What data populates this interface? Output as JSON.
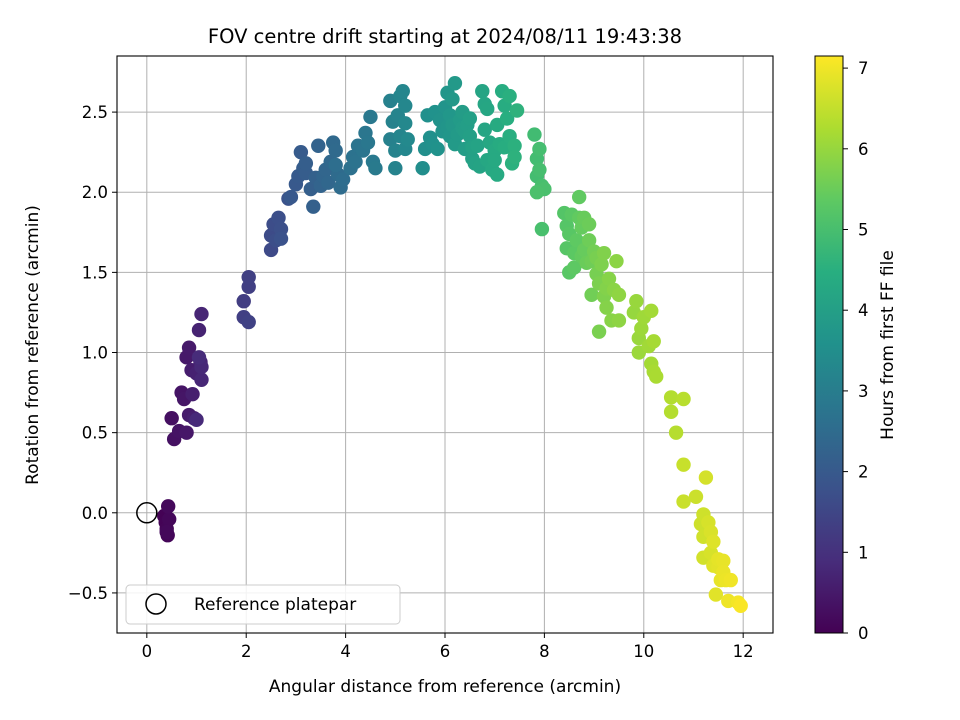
{
  "chart_data": {
    "type": "scatter",
    "title": "FOV centre drift starting at 2024/08/11 19:43:38",
    "xlabel": "Angular distance from reference (arcmin)",
    "ylabel": "Rotation from reference (arcmin)",
    "xlim": [
      -0.6,
      12.6
    ],
    "ylim": [
      -0.75,
      2.85
    ],
    "xticks": [
      0,
      2,
      4,
      6,
      8,
      10,
      12
    ],
    "yticks": [
      -0.5,
      0.0,
      0.5,
      1.0,
      1.5,
      2.0,
      2.5
    ],
    "xtick_labels": [
      "0",
      "2",
      "4",
      "6",
      "8",
      "10",
      "12"
    ],
    "ytick_labels": [
      "−0.5",
      "0.0",
      "0.5",
      "1.0",
      "1.5",
      "2.0",
      "2.5"
    ],
    "grid": true,
    "legend": {
      "placement": "lower-left",
      "entries": [
        {
          "label": "Reference platepar",
          "marker": "open-circle"
        }
      ]
    },
    "reference_point": {
      "x": 0.0,
      "y": 0.0
    },
    "colorbar": {
      "label": "Hours from first FF file",
      "colormap": "viridis",
      "range": [
        0,
        7.15
      ],
      "ticks": [
        0,
        1,
        2,
        3,
        4,
        5,
        6,
        7
      ],
      "tick_labels": [
        "0",
        "1",
        "2",
        "3",
        "4",
        "5",
        "6",
        "7"
      ]
    },
    "points": [
      [
        0.35,
        -0.02,
        0.02
      ],
      [
        0.38,
        -0.06,
        0.05
      ],
      [
        0.4,
        -0.1,
        0.08
      ],
      [
        0.42,
        -0.14,
        0.1
      ],
      [
        0.45,
        -0.04,
        0.12
      ],
      [
        0.4,
        -0.12,
        0.14
      ],
      [
        0.43,
        0.04,
        0.16
      ],
      [
        0.5,
        0.59,
        0.3
      ],
      [
        0.55,
        0.46,
        0.33
      ],
      [
        0.65,
        0.51,
        0.36
      ],
      [
        0.7,
        0.75,
        0.39
      ],
      [
        0.75,
        0.71,
        0.42
      ],
      [
        0.8,
        0.5,
        0.45
      ],
      [
        0.8,
        0.97,
        0.48
      ],
      [
        0.85,
        1.03,
        0.51
      ],
      [
        0.85,
        0.61,
        0.54
      ],
      [
        0.9,
        0.89,
        0.57
      ],
      [
        0.92,
        0.74,
        0.6
      ],
      [
        0.95,
        0.59,
        0.63
      ],
      [
        1.0,
        0.87,
        0.66
      ],
      [
        1.05,
        1.14,
        0.69
      ],
      [
        1.08,
        0.94,
        0.72
      ],
      [
        1.1,
        1.24,
        0.75
      ],
      [
        1.1,
        0.83,
        0.78
      ],
      [
        1.1,
        0.91,
        0.81
      ],
      [
        1.0,
        0.58,
        0.84
      ],
      [
        1.05,
        0.97,
        0.87
      ],
      [
        1.95,
        1.32,
        1.3
      ],
      [
        1.95,
        1.22,
        1.32
      ],
      [
        2.05,
        1.41,
        1.34
      ],
      [
        2.05,
        1.47,
        1.36
      ],
      [
        2.05,
        1.19,
        1.38
      ],
      [
        2.5,
        1.64,
        1.6
      ],
      [
        2.5,
        1.73,
        1.63
      ],
      [
        2.55,
        1.8,
        1.66
      ],
      [
        2.6,
        1.7,
        1.69
      ],
      [
        2.65,
        1.84,
        1.72
      ],
      [
        2.7,
        1.77,
        1.75
      ],
      [
        2.7,
        1.71,
        1.78
      ],
      [
        2.85,
        1.96,
        1.81
      ],
      [
        2.9,
        1.97,
        1.95
      ],
      [
        3.0,
        2.05,
        1.98
      ],
      [
        3.05,
        2.1,
        2.01
      ],
      [
        3.1,
        2.25,
        2.04
      ],
      [
        3.15,
        2.15,
        2.07
      ],
      [
        3.2,
        2.12,
        2.1
      ],
      [
        3.2,
        2.18,
        2.13
      ],
      [
        3.3,
        2.02,
        2.16
      ],
      [
        3.35,
        1.91,
        2.19
      ],
      [
        3.4,
        2.09,
        2.22
      ],
      [
        3.45,
        2.29,
        2.25
      ],
      [
        3.5,
        2.04,
        2.28
      ],
      [
        3.55,
        2.1,
        2.31
      ],
      [
        3.6,
        2.14,
        2.34
      ],
      [
        3.65,
        2.06,
        2.37
      ],
      [
        3.7,
        2.19,
        2.4
      ],
      [
        3.75,
        2.31,
        2.43
      ],
      [
        3.8,
        2.26,
        2.46
      ],
      [
        3.85,
        2.11,
        2.49
      ],
      [
        3.9,
        2.03,
        2.52
      ],
      [
        3.95,
        2.08,
        2.55
      ],
      [
        3.8,
        2.17,
        2.58
      ],
      [
        4.1,
        2.15,
        2.65
      ],
      [
        4.15,
        2.22,
        2.68
      ],
      [
        4.2,
        2.19,
        2.71
      ],
      [
        4.25,
        2.29,
        2.74
      ],
      [
        4.35,
        2.26,
        2.77
      ],
      [
        4.4,
        2.37,
        2.8
      ],
      [
        4.45,
        2.31,
        2.83
      ],
      [
        4.5,
        2.47,
        2.86
      ],
      [
        4.55,
        2.19,
        2.89
      ],
      [
        4.6,
        2.15,
        2.92
      ],
      [
        4.9,
        2.33,
        3.1
      ],
      [
        4.9,
        2.57,
        3.12
      ],
      [
        4.95,
        2.44,
        3.14
      ],
      [
        5.0,
        2.15,
        3.16
      ],
      [
        5.0,
        2.26,
        3.18
      ],
      [
        5.05,
        2.48,
        3.2
      ],
      [
        5.1,
        2.6,
        3.22
      ],
      [
        5.1,
        2.35,
        3.24
      ],
      [
        5.15,
        2.63,
        3.26
      ],
      [
        5.2,
        2.54,
        3.28
      ],
      [
        5.2,
        2.27,
        3.3
      ],
      [
        5.2,
        2.43,
        3.32
      ],
      [
        5.25,
        2.33,
        3.34
      ],
      [
        5.55,
        2.15,
        3.5
      ],
      [
        5.6,
        2.27,
        3.52
      ],
      [
        5.65,
        2.48,
        3.54
      ],
      [
        5.7,
        2.34,
        3.56
      ],
      [
        5.75,
        2.3,
        3.58
      ],
      [
        5.8,
        2.5,
        3.6
      ],
      [
        5.85,
        2.27,
        3.62
      ],
      [
        5.9,
        2.45,
        3.64
      ],
      [
        5.95,
        2.38,
        3.66
      ],
      [
        6.0,
        2.53,
        3.68
      ],
      [
        6.05,
        2.41,
        3.7
      ],
      [
        6.05,
        2.62,
        3.72
      ],
      [
        6.1,
        2.35,
        3.74
      ],
      [
        6.1,
        2.48,
        3.76
      ],
      [
        6.15,
        2.42,
        3.78
      ],
      [
        6.15,
        2.58,
        3.8
      ],
      [
        6.2,
        2.68,
        3.82
      ],
      [
        6.2,
        2.3,
        3.84
      ],
      [
        6.25,
        2.36,
        3.86
      ],
      [
        6.3,
        2.45,
        3.88
      ],
      [
        6.35,
        2.4,
        3.9
      ],
      [
        6.35,
        2.5,
        3.92
      ],
      [
        6.4,
        2.38,
        3.94
      ],
      [
        6.4,
        2.27,
        3.96
      ],
      [
        6.45,
        2.42,
        3.98
      ],
      [
        6.5,
        2.35,
        4.0
      ],
      [
        6.5,
        2.46,
        4.02
      ],
      [
        6.55,
        2.21,
        4.04
      ],
      [
        6.55,
        2.28,
        4.06
      ],
      [
        6.6,
        2.18,
        4.1
      ],
      [
        6.65,
        2.29,
        4.12
      ],
      [
        6.7,
        2.16,
        4.14
      ],
      [
        6.75,
        2.63,
        4.16
      ],
      [
        6.8,
        2.55,
        4.18
      ],
      [
        6.8,
        2.39,
        4.2
      ],
      [
        6.85,
        2.52,
        4.22
      ],
      [
        6.85,
        2.2,
        4.24
      ],
      [
        6.9,
        2.31,
        4.26
      ],
      [
        6.95,
        2.14,
        4.28
      ],
      [
        7.0,
        2.26,
        4.3
      ],
      [
        7.0,
        2.2,
        4.32
      ],
      [
        7.05,
        2.11,
        4.34
      ],
      [
        7.05,
        2.42,
        4.36
      ],
      [
        7.1,
        2.3,
        4.38
      ],
      [
        7.15,
        2.63,
        4.4
      ],
      [
        7.2,
        2.54,
        4.42
      ],
      [
        7.2,
        2.28,
        4.44
      ],
      [
        7.25,
        2.46,
        4.46
      ],
      [
        7.3,
        2.35,
        4.48
      ],
      [
        7.3,
        2.6,
        4.5
      ],
      [
        7.35,
        2.18,
        4.52
      ],
      [
        7.4,
        2.29,
        4.54
      ],
      [
        7.4,
        2.22,
        4.56
      ],
      [
        7.45,
        2.51,
        4.58
      ],
      [
        7.8,
        2.36,
        4.9
      ],
      [
        7.85,
        2.21,
        4.92
      ],
      [
        7.85,
        2.1,
        4.94
      ],
      [
        7.9,
        2.27,
        4.96
      ],
      [
        7.9,
        2.14,
        4.98
      ],
      [
        7.95,
        2.04,
        5.0
      ],
      [
        7.95,
        1.77,
        5.02
      ],
      [
        8.0,
        2.02,
        5.04
      ],
      [
        7.85,
        2.0,
        5.06
      ],
      [
        8.4,
        1.87,
        5.2
      ],
      [
        8.45,
        1.79,
        5.22
      ],
      [
        8.45,
        1.65,
        5.24
      ],
      [
        8.5,
        1.74,
        5.26
      ],
      [
        8.5,
        1.5,
        5.28
      ],
      [
        8.55,
        1.86,
        5.3
      ],
      [
        8.6,
        1.62,
        5.32
      ],
      [
        8.6,
        1.53,
        5.34
      ],
      [
        8.65,
        1.7,
        5.36
      ],
      [
        8.7,
        1.97,
        5.38
      ],
      [
        8.7,
        1.84,
        5.4
      ],
      [
        8.75,
        1.6,
        5.42
      ],
      [
        8.75,
        1.78,
        5.44
      ],
      [
        8.8,
        1.64,
        5.46
      ],
      [
        8.8,
        1.84,
        5.48
      ],
      [
        8.85,
        1.56,
        5.5
      ],
      [
        8.9,
        1.8,
        5.52
      ],
      [
        8.9,
        1.7,
        5.54
      ],
      [
        8.95,
        1.57,
        5.56
      ],
      [
        8.95,
        1.36,
        5.58
      ],
      [
        9.0,
        1.63,
        5.6
      ],
      [
        9.05,
        1.49,
        5.64
      ],
      [
        9.05,
        1.59,
        5.66
      ],
      [
        9.1,
        1.13,
        5.68
      ],
      [
        9.1,
        1.43,
        5.7
      ],
      [
        9.15,
        1.55,
        5.72
      ],
      [
        9.2,
        1.35,
        5.74
      ],
      [
        9.2,
        1.62,
        5.76
      ],
      [
        9.25,
        1.4,
        5.78
      ],
      [
        9.25,
        1.28,
        5.8
      ],
      [
        9.3,
        1.46,
        5.82
      ],
      [
        9.35,
        1.2,
        5.84
      ],
      [
        9.4,
        1.39,
        5.86
      ],
      [
        9.45,
        1.57,
        5.88
      ],
      [
        9.5,
        1.2,
        5.9
      ],
      [
        9.5,
        1.36,
        5.92
      ],
      [
        9.8,
        1.25,
        6.0
      ],
      [
        9.85,
        1.32,
        6.02
      ],
      [
        9.9,
        1.09,
        6.04
      ],
      [
        9.9,
        1.0,
        6.06
      ],
      [
        9.95,
        1.15,
        6.08
      ],
      [
        10.0,
        1.22,
        6.1
      ],
      [
        10.1,
        1.04,
        6.12
      ],
      [
        10.15,
        1.26,
        6.14
      ],
      [
        10.15,
        0.93,
        6.16
      ],
      [
        10.2,
        1.07,
        6.18
      ],
      [
        10.2,
        0.88,
        6.2
      ],
      [
        10.25,
        0.85,
        6.22
      ],
      [
        10.55,
        0.72,
        6.32
      ],
      [
        10.55,
        0.63,
        6.34
      ],
      [
        10.65,
        0.5,
        6.36
      ],
      [
        10.8,
        0.71,
        6.38
      ],
      [
        10.8,
        0.3,
        6.55
      ],
      [
        10.8,
        0.07,
        6.57
      ],
      [
        11.05,
        0.1,
        6.59
      ],
      [
        11.15,
        -0.07,
        6.61
      ],
      [
        11.2,
        -0.01,
        6.63
      ],
      [
        11.2,
        -0.15,
        6.65
      ],
      [
        11.2,
        -0.28,
        6.67
      ],
      [
        11.25,
        0.22,
        6.69
      ],
      [
        11.3,
        -0.06,
        6.71
      ],
      [
        11.35,
        -0.25,
        6.73
      ],
      [
        11.35,
        -0.12,
        6.75
      ],
      [
        11.4,
        -0.18,
        6.8
      ],
      [
        11.4,
        -0.33,
        6.82
      ],
      [
        11.45,
        -0.51,
        6.84
      ],
      [
        11.5,
        -0.34,
        6.86
      ],
      [
        11.5,
        -0.29,
        6.88
      ],
      [
        11.55,
        -0.42,
        6.9
      ],
      [
        11.6,
        -0.3,
        6.92
      ],
      [
        11.6,
        -0.37,
        6.94
      ],
      [
        11.65,
        -0.42,
        6.96
      ],
      [
        11.7,
        -0.55,
        6.98
      ],
      [
        11.75,
        -0.42,
        7.0
      ],
      [
        11.9,
        -0.56,
        7.05
      ],
      [
        11.95,
        -0.58,
        7.1
      ]
    ]
  }
}
